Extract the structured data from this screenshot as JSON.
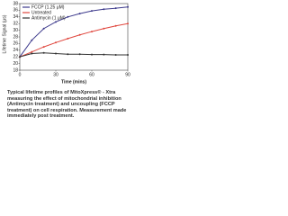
{
  "chart_data": {
    "type": "line",
    "ylabel": "Lifetime Signal (μs)",
    "xlabel": "Time (mins)",
    "x": [
      0,
      10,
      20,
      30,
      40,
      50,
      60,
      70,
      80,
      90
    ],
    "series": [
      {
        "name": "FCCP (1.25 μM)",
        "color": "#3d3a8c",
        "values": [
          22,
          27,
          30.5,
          32.5,
          34,
          35,
          35.8,
          36.3,
          36.6,
          37
        ]
      },
      {
        "name": "Untreated",
        "color": "#e0473e",
        "values": [
          22,
          23.5,
          25,
          26.3,
          27.5,
          28.6,
          29.6,
          30.5,
          31.3,
          32
        ]
      },
      {
        "name": "Antimycin (1 μM)",
        "color": "#333333",
        "values": [
          22,
          23,
          23.2,
          23,
          22.8,
          22.8,
          22.7,
          22.7,
          22.6,
          22.6
        ]
      }
    ],
    "xlim": [
      0,
      90
    ],
    "xticks": [
      0,
      30,
      60,
      90
    ],
    "ylim": [
      18,
      38
    ],
    "yticks": [
      18,
      20,
      22,
      24,
      26,
      28,
      30,
      32,
      34,
      36,
      38
    ],
    "legend": "upper left",
    "caption": "Typical lifetime profiles of MitoXpress® - Xtra measuring the effect of mitochondrial inhibition (Antimycin treatment) and uncoupling (FCCP treatment) on cell respiration. Measurement made immediately post treatment."
  }
}
